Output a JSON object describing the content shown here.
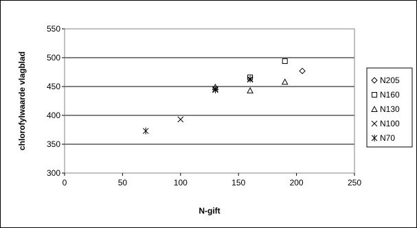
{
  "chart_data": {
    "type": "scatter",
    "xlabel": "N-gift",
    "ylabel": "chlorofylwaarde vlagblad",
    "xlim": [
      0,
      250
    ],
    "ylim": [
      300,
      550
    ],
    "xticks": [
      0,
      50,
      100,
      150,
      200,
      250
    ],
    "yticks": [
      300,
      350,
      400,
      450,
      500,
      550
    ],
    "grid": "horizontal",
    "legend_position": "right",
    "series": [
      {
        "name": "N205",
        "marker": "diamond",
        "points": [
          [
            205,
            477
          ]
        ]
      },
      {
        "name": "N160",
        "marker": "square",
        "points": [
          [
            160,
            466
          ],
          [
            190,
            494
          ]
        ]
      },
      {
        "name": "N130",
        "marker": "triangle",
        "points": [
          [
            130,
            449
          ],
          [
            160,
            443
          ],
          [
            190,
            458
          ]
        ]
      },
      {
        "name": "N100",
        "marker": "x",
        "points": [
          [
            100,
            393
          ],
          [
            130,
            446
          ],
          [
            160,
            462
          ]
        ]
      },
      {
        "name": "N70",
        "marker": "star",
        "points": [
          [
            70,
            373
          ],
          [
            130,
            444
          ],
          [
            160,
            463
          ]
        ]
      }
    ]
  }
}
